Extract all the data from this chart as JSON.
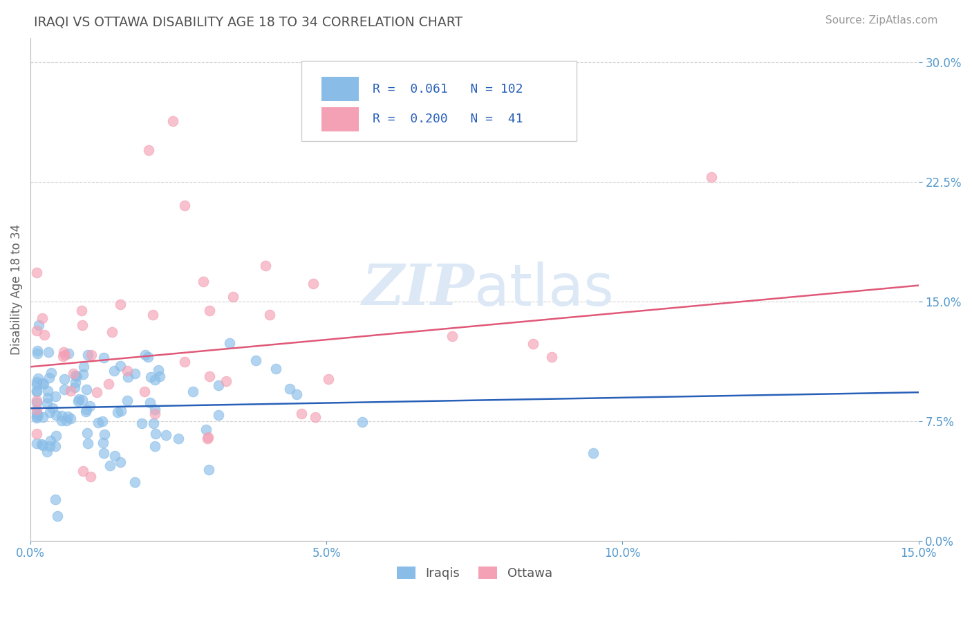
{
  "title": "IRAQI VS OTTAWA DISABILITY AGE 18 TO 34 CORRELATION CHART",
  "source_text": "Source: ZipAtlas.com",
  "ylabel": "Disability Age 18 to 34",
  "xlabel": "",
  "xlim": [
    0.0,
    0.15
  ],
  "ylim": [
    0.0,
    0.315
  ],
  "yticks": [
    0.0,
    0.075,
    0.15,
    0.225,
    0.3
  ],
  "ytick_labels": [
    "0.0%",
    "7.5%",
    "15.0%",
    "22.5%",
    "30.0%"
  ],
  "xticks": [
    0.0,
    0.05,
    0.1,
    0.15
  ],
  "xtick_labels": [
    "0.0%",
    "5.0%",
    "10.0%",
    "15.0%"
  ],
  "blue_R": 0.061,
  "blue_N": 102,
  "pink_R": 0.2,
  "pink_N": 41,
  "blue_color": "#89bde8",
  "pink_color": "#f4a0b5",
  "blue_line_color": "#2860b8",
  "pink_line_color": "#e05878",
  "legend_R_color": "#2860b8",
  "title_color": "#505050",
  "axis_color": "#5599cc",
  "watermark_color": "#dce8f5",
  "grid_color": "#cccccc",
  "background_color": "#ffffff",
  "blue_line_x": [
    0.0,
    0.15
  ],
  "blue_line_y": [
    0.083,
    0.093
  ],
  "pink_line_x": [
    0.0,
    0.15
  ],
  "pink_line_y": [
    0.109,
    0.16
  ]
}
